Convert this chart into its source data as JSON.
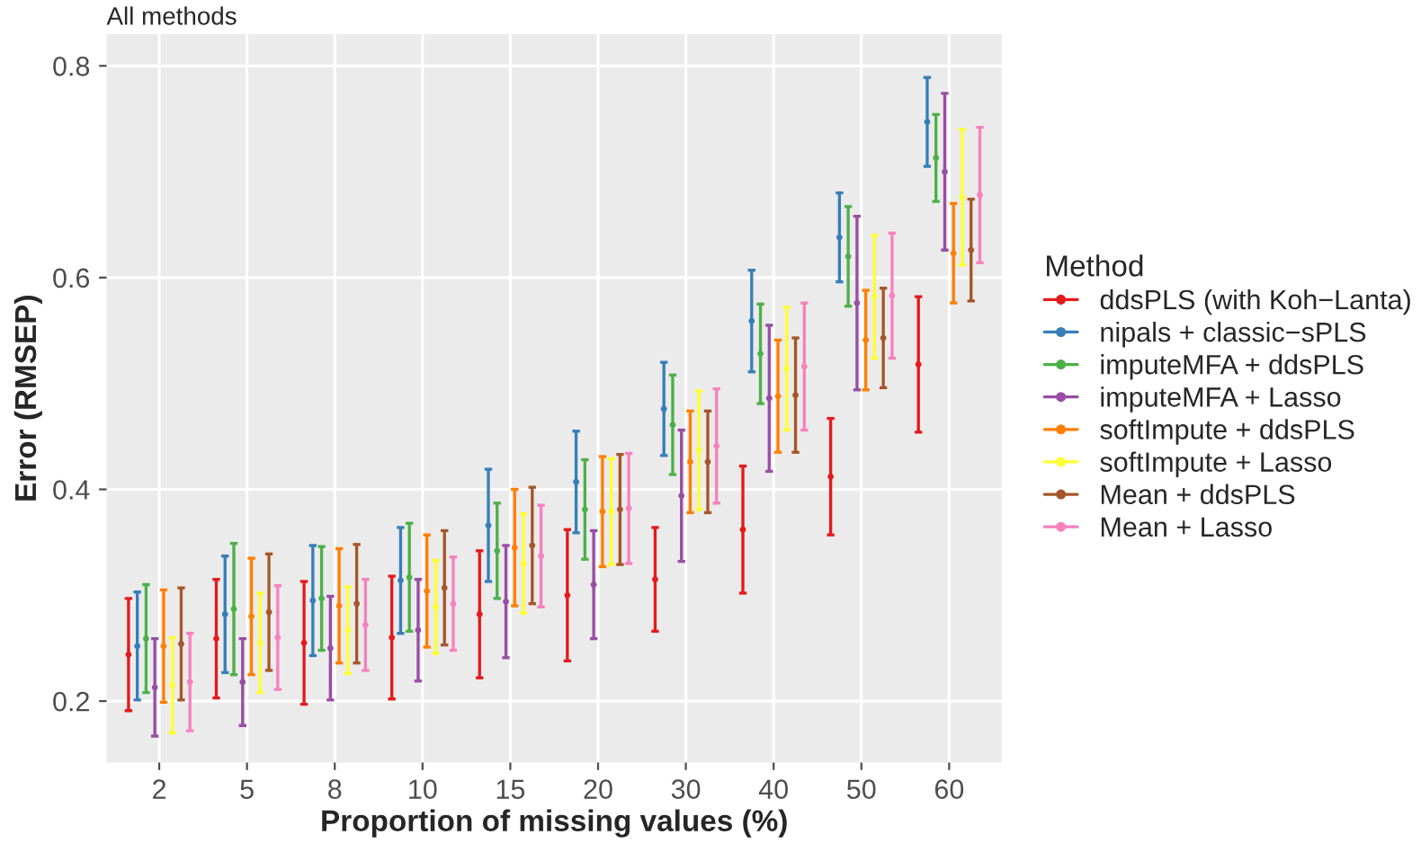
{
  "chart_data": {
    "type": "scatter",
    "title": "All methods",
    "xlabel": "Proportion of missing values (%)",
    "ylabel": "Error (RMSEP)",
    "legend_title": "Method",
    "categories": [
      "2",
      "5",
      "8",
      "10",
      "15",
      "20",
      "30",
      "40",
      "50",
      "60"
    ],
    "ylim": [
      0.142,
      0.83
    ],
    "yticks": [
      0.2,
      0.4,
      0.6,
      0.8
    ],
    "grid": true,
    "legend": "right",
    "marker": "circle",
    "series": [
      {
        "name": "ddsPLS (with Koh−Lanta)",
        "color": "#e41a1c",
        "values": [
          0.244,
          0.259,
          0.255,
          0.26,
          0.282,
          0.3,
          0.315,
          0.362,
          0.412,
          0.518
        ],
        "errors": [
          0.053,
          0.056,
          0.058,
          0.058,
          0.06,
          0.062,
          0.049,
          0.06,
          0.055,
          0.064
        ]
      },
      {
        "name": "nipals + classic−sPLS",
        "color": "#377eb8",
        "values": [
          0.252,
          0.282,
          0.295,
          0.314,
          0.366,
          0.407,
          0.476,
          0.559,
          0.638,
          0.747
        ],
        "errors": [
          0.051,
          0.055,
          0.052,
          0.05,
          0.053,
          0.048,
          0.044,
          0.048,
          0.042,
          0.042
        ]
      },
      {
        "name": "imputeMFA + ddsPLS",
        "color": "#4daf4a",
        "values": [
          0.259,
          0.287,
          0.297,
          0.317,
          0.342,
          0.381,
          0.461,
          0.528,
          0.62,
          0.713
        ],
        "errors": [
          0.051,
          0.062,
          0.049,
          0.051,
          0.045,
          0.047,
          0.047,
          0.047,
          0.047,
          0.041
        ]
      },
      {
        "name": "imputeMFA + Lasso",
        "color": "#984ea3",
        "values": [
          0.213,
          0.218,
          0.25,
          0.267,
          0.294,
          0.31,
          0.394,
          0.486,
          0.576,
          0.7
        ],
        "errors": [
          0.046,
          0.041,
          0.049,
          0.048,
          0.053,
          0.051,
          0.062,
          0.069,
          0.082,
          0.074
        ]
      },
      {
        "name": "softImpute + ddsPLS",
        "color": "#ff7f00",
        "values": [
          0.252,
          0.28,
          0.29,
          0.304,
          0.345,
          0.379,
          0.426,
          0.488,
          0.541,
          0.623
        ],
        "errors": [
          0.053,
          0.055,
          0.054,
          0.053,
          0.055,
          0.052,
          0.048,
          0.053,
          0.047,
          0.047
        ]
      },
      {
        "name": "softImpute + Lasso",
        "color": "#ffff33",
        "values": [
          0.215,
          0.255,
          0.267,
          0.289,
          0.33,
          0.379,
          0.437,
          0.514,
          0.582,
          0.676
        ],
        "errors": [
          0.045,
          0.047,
          0.041,
          0.044,
          0.047,
          0.05,
          0.056,
          0.058,
          0.058,
          0.064
        ]
      },
      {
        "name": "Mean + ddsPLS",
        "color": "#a65628",
        "values": [
          0.254,
          0.284,
          0.292,
          0.307,
          0.347,
          0.381,
          0.426,
          0.489,
          0.543,
          0.626
        ],
        "errors": [
          0.053,
          0.055,
          0.056,
          0.054,
          0.055,
          0.052,
          0.048,
          0.054,
          0.047,
          0.048
        ]
      },
      {
        "name": "Mean + Lasso",
        "color": "#f781bf",
        "values": [
          0.218,
          0.26,
          0.272,
          0.292,
          0.337,
          0.382,
          0.441,
          0.516,
          0.583,
          0.678
        ],
        "errors": [
          0.046,
          0.049,
          0.043,
          0.044,
          0.048,
          0.052,
          0.054,
          0.06,
          0.059,
          0.064
        ]
      }
    ]
  }
}
